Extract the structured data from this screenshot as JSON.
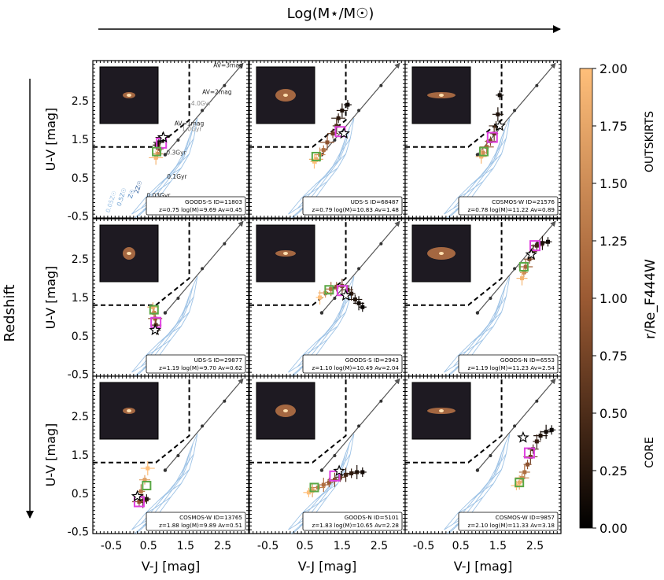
{
  "figure": {
    "top_arrow_label": "Log(M⋆/M☉)",
    "left_arrow_label": "Redshift",
    "colorbar": {
      "label": "r/Re_F444W",
      "range": [
        0.0,
        2.0
      ],
      "ticks": [
        "0.00",
        "0.25",
        "0.50",
        "0.75",
        "1.00",
        "1.25",
        "1.50",
        "1.75",
        "2.00"
      ],
      "top_annotation": "OUTSKIRTS",
      "bottom_annotation": "CORE",
      "color_low": "#000000",
      "color_mid": "#9b5a33",
      "color_high": "#ffbf7a"
    },
    "axes": {
      "xlabel": "V-J [mag]",
      "ylabel": "U-V [mag]",
      "xticks": [
        "-0.5",
        "0.5",
        "1.5",
        "2.5"
      ],
      "yticks": [
        "-0.5",
        "0.5",
        "1.5",
        "2.5"
      ],
      "xlim": [
        -1.0,
        3.2
      ],
      "ylim": [
        -0.55,
        3.55
      ]
    },
    "model_labels": {
      "av": [
        "AV=3mag",
        "AV=2mag",
        "AV=1mag"
      ],
      "ages": [
        "4.0Gyr",
        "1.0Gyr",
        "0.3Gyr",
        "0.1Gyr",
        "0.03Gyr"
      ],
      "metallicities": [
        "0.05Z☉",
        "0.5Z☉",
        "Z☉",
        "2Z☉"
      ]
    }
  },
  "chart_data": [
    {
      "type": "scatter",
      "panel": "row1-col1",
      "field": "GOODS-S",
      "id_text": "ID=11803",
      "info": "z=0.75  log(M)=9.69  Av=0.45",
      "points": [
        [
          0.72,
          1.35,
          0.3
        ],
        [
          0.78,
          1.42,
          0.1
        ],
        [
          0.88,
          1.55,
          0.2
        ],
        [
          0.8,
          1.25,
          0.8
        ],
        [
          0.75,
          1.12,
          1.5
        ],
        [
          0.7,
          1.02,
          1.9
        ]
      ],
      "core": [
        0.9,
        1.55
      ],
      "half_light": [
        0.85,
        1.4
      ],
      "twice_half_light": [
        0.72,
        1.18
      ]
    },
    {
      "type": "scatter",
      "panel": "row1-col2",
      "field": "UDS-S",
      "id_text": "ID=68487",
      "info": "z=0.79  log(M)=10.83  Av=1.48",
      "points": [
        [
          1.65,
          2.4,
          0.1
        ],
        [
          1.5,
          2.25,
          0.2
        ],
        [
          1.4,
          2.05,
          0.3
        ],
        [
          1.35,
          1.85,
          0.5
        ],
        [
          1.25,
          1.65,
          0.7
        ],
        [
          1.1,
          1.42,
          0.9
        ],
        [
          1.0,
          1.22,
          1.2
        ],
        [
          0.9,
          1.1,
          1.5
        ],
        [
          0.8,
          0.98,
          1.8
        ],
        [
          0.75,
          0.92,
          2.0
        ]
      ],
      "core": [
        1.55,
        1.65
      ],
      "half_light": [
        1.45,
        1.7
      ],
      "twice_half_light": [
        0.8,
        1.05
      ]
    },
    {
      "type": "scatter",
      "panel": "row1-col3",
      "field": "COSMOS-W",
      "id_text": "ID=21576",
      "info": "z=0.78  log(M)=11.22  Av=0.89",
      "points": [
        [
          1.55,
          2.65,
          0.1
        ],
        [
          1.5,
          2.15,
          0.2
        ],
        [
          1.45,
          1.85,
          0.4
        ],
        [
          1.4,
          1.65,
          0.6
        ],
        [
          1.3,
          1.45,
          0.8
        ],
        [
          1.2,
          1.3,
          1.1
        ],
        [
          1.1,
          1.15,
          1.5
        ],
        [
          1.05,
          1.05,
          1.9
        ]
      ],
      "core": [
        1.55,
        1.85
      ],
      "half_light": [
        1.35,
        1.55
      ],
      "twice_half_light": [
        1.12,
        1.18
      ]
    },
    {
      "type": "scatter",
      "panel": "row2-col1",
      "field": "UDS-S",
      "id_text": "ID=29877",
      "info": "z=1.19  log(M)=9.70  Av=0.62",
      "points": [
        [
          0.72,
          0.65,
          0.3
        ],
        [
          0.7,
          0.78,
          0.5
        ],
        [
          0.68,
          0.95,
          0.9
        ],
        [
          0.65,
          1.1,
          1.4
        ],
        [
          0.62,
          1.25,
          1.8
        ]
      ],
      "core": [
        0.68,
        0.65
      ],
      "half_light": [
        0.7,
        0.85
      ],
      "twice_half_light": [
        0.65,
        1.18
      ]
    },
    {
      "type": "scatter",
      "panel": "row2-col2",
      "field": "GOODS-S",
      "id_text": "ID=2943",
      "info": "z=1.10  log(M)=10.49  Av=2.04",
      "points": [
        [
          2.05,
          1.25,
          0.05
        ],
        [
          1.95,
          1.35,
          0.1
        ],
        [
          1.85,
          1.45,
          0.2
        ],
        [
          1.75,
          1.6,
          0.3
        ],
        [
          1.65,
          1.7,
          0.5
        ],
        [
          1.5,
          1.8,
          0.7
        ],
        [
          1.35,
          1.78,
          0.9
        ],
        [
          1.2,
          1.72,
          1.2
        ],
        [
          1.05,
          1.62,
          1.6
        ],
        [
          0.9,
          1.5,
          2.0
        ]
      ],
      "core": [
        1.6,
        1.55
      ],
      "half_light": [
        1.5,
        1.68
      ],
      "twice_half_light": [
        1.15,
        1.7
      ]
    },
    {
      "type": "scatter",
      "panel": "row2-col3",
      "field": "GOODS-N",
      "id_text": "ID=6553",
      "info": "z=1.19  log(M)=11.23  Av=2.54",
      "points": [
        [
          2.85,
          2.95,
          0.1
        ],
        [
          2.7,
          2.92,
          0.2
        ],
        [
          2.55,
          2.85,
          0.4
        ],
        [
          2.45,
          2.7,
          0.6
        ],
        [
          2.35,
          2.5,
          0.8
        ],
        [
          2.25,
          2.3,
          1.1
        ],
        [
          2.2,
          2.15,
          1.5
        ],
        [
          2.15,
          2.0,
          1.9
        ]
      ],
      "core": [
        2.4,
        2.62
      ],
      "half_light": [
        2.5,
        2.85
      ],
      "twice_half_light": [
        2.2,
        2.3
      ]
    },
    {
      "type": "scatter",
      "panel": "row3-col1",
      "field": "COSMOS-W",
      "id_text": "ID=13765",
      "info": "z=1.88  log(M)=9.89  Av=0.51",
      "points": [
        [
          0.45,
          0.35,
          0.2
        ],
        [
          0.35,
          0.3,
          0.5
        ],
        [
          0.25,
          0.28,
          0.9
        ],
        [
          0.3,
          0.55,
          1.3
        ],
        [
          0.4,
          0.85,
          1.7
        ],
        [
          0.48,
          1.15,
          2.0
        ]
      ],
      "core": [
        0.2,
        0.42
      ],
      "half_light": [
        0.25,
        0.28
      ],
      "twice_half_light": [
        0.45,
        0.7
      ]
    },
    {
      "type": "scatter",
      "panel": "row3-col2",
      "field": "GOODS-N",
      "id_text": "ID=5101",
      "info": "z=1.83  log(M)=10.65  Av=2.28",
      "points": [
        [
          2.05,
          1.05,
          0.1
        ],
        [
          1.9,
          1.05,
          0.2
        ],
        [
          1.75,
          1.02,
          0.3
        ],
        [
          1.6,
          0.98,
          0.4
        ],
        [
          1.45,
          0.92,
          0.6
        ],
        [
          1.3,
          0.85,
          0.8
        ],
        [
          1.15,
          0.78,
          1.0
        ],
        [
          1.0,
          0.72,
          1.2
        ],
        [
          0.85,
          0.65,
          1.4
        ],
        [
          0.7,
          0.58,
          1.7
        ],
        [
          0.6,
          0.52,
          2.0
        ]
      ],
      "core": [
        1.42,
        1.08
      ],
      "half_light": [
        1.3,
        0.95
      ],
      "twice_half_light": [
        0.75,
        0.65
      ]
    },
    {
      "type": "scatter",
      "panel": "row3-col3",
      "field": "COSMOS-W",
      "id_text": "ID=9857",
      "info": "z=2.10  log(M)=11.33  Av=3.18",
      "points": [
        [
          2.95,
          2.15,
          0.05
        ],
        [
          2.8,
          2.1,
          0.1
        ],
        [
          2.65,
          2.0,
          0.2
        ],
        [
          2.55,
          1.85,
          0.35
        ],
        [
          2.45,
          1.65,
          0.5
        ],
        [
          2.38,
          1.45,
          0.7
        ],
        [
          2.3,
          1.25,
          0.9
        ],
        [
          2.22,
          1.05,
          1.2
        ],
        [
          2.15,
          0.9,
          1.5
        ],
        [
          2.08,
          0.78,
          1.8
        ],
        [
          2.0,
          0.7,
          2.0
        ]
      ],
      "core": [
        2.18,
        1.95
      ],
      "half_light": [
        2.35,
        1.55
      ],
      "twice_half_light": [
        2.08,
        0.78
      ]
    }
  ]
}
